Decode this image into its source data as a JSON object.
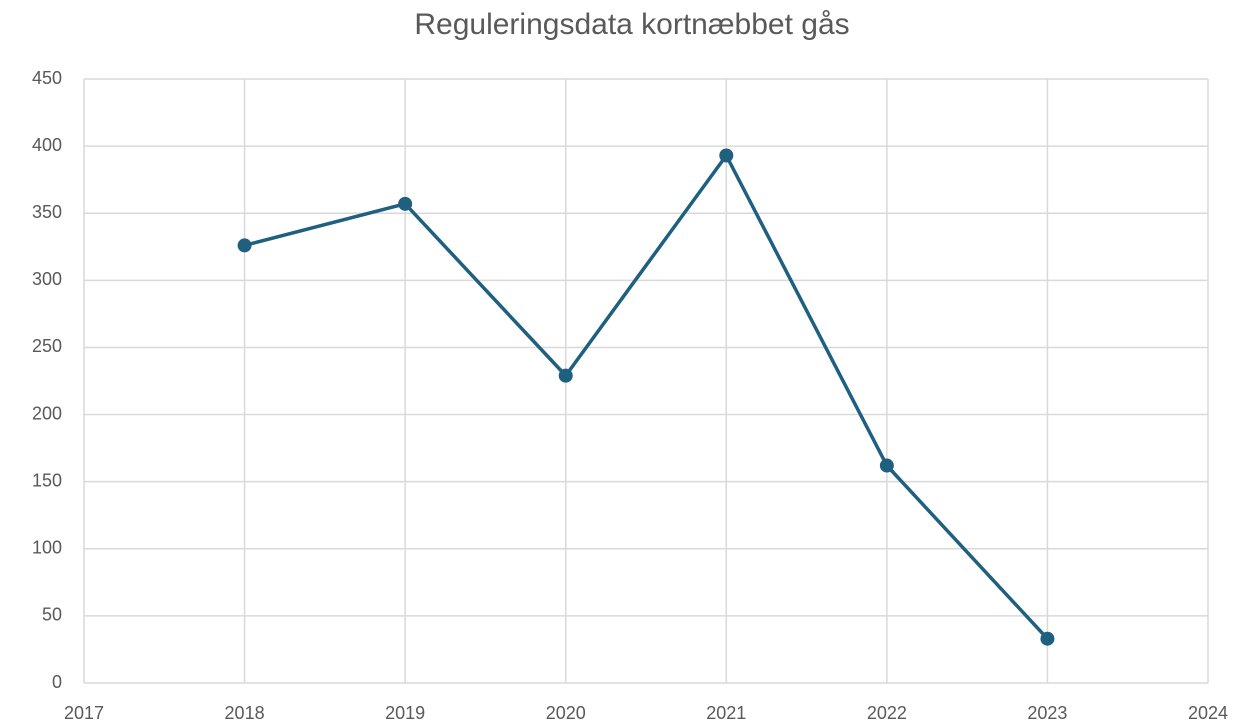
{
  "chart_data": {
    "type": "line",
    "title": "Reguleringsdata kortnæbbet gås",
    "x": [
      2018,
      2019,
      2020,
      2021,
      2022,
      2023
    ],
    "series": [
      {
        "color": "#1f5f7f",
        "values": [
          326,
          357,
          229,
          393,
          162,
          33
        ]
      }
    ],
    "xlim": [
      2017,
      2024
    ],
    "xticks": [
      2017,
      2018,
      2019,
      2020,
      2021,
      2022,
      2023,
      2024
    ],
    "ylim": [
      0,
      450
    ],
    "yticks": [
      0,
      50,
      100,
      150,
      200,
      250,
      300,
      350,
      400,
      450
    ],
    "grid": true,
    "markers": true
  }
}
